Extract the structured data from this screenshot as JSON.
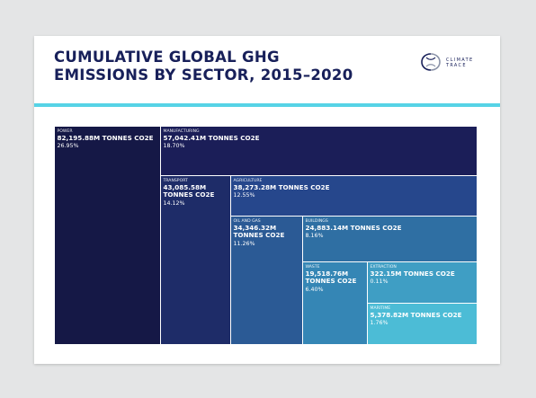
{
  "title": "CUMULATIVE GLOBAL GHG EMISSIONS BY SECTOR, 2015–2020",
  "logo": {
    "text": "CLIMATE\nTRACE",
    "icon": "climate-trace-logo-icon"
  },
  "colors": {
    "accent_band": "#56d3e6",
    "title": "#18205a",
    "background": "#e4e5e6"
  },
  "chart_data": {
    "type": "treemap",
    "title": "CUMULATIVE GLOBAL GHG EMISSIONS BY SECTOR, 2015–2020",
    "unit": "M TONNES CO2E",
    "sectors": [
      {
        "name": "POWER",
        "value": 82195.88,
        "value_label": "82,195.88M TONNES CO2E",
        "share_label": "26.95%",
        "color": "#151846"
      },
      {
        "name": "MANUFACTURING",
        "value": 57042.41,
        "value_label": "57,042.41M TONNES CO2E",
        "share_label": "18.70%",
        "color": "#1b1e58"
      },
      {
        "name": "TRANSPORT",
        "value": 43085.58,
        "value_label": "43,085.58M TONNES CO2E",
        "share_label": "14.12%",
        "color": "#1e2c68"
      },
      {
        "name": "AGRICULTURE",
        "value": 38273.28,
        "value_label": "38,273.28M TONNES CO2E",
        "share_label": "12.55%",
        "color": "#26478c"
      },
      {
        "name": "OIL AND GAS",
        "value": 34346.32,
        "value_label": "34,346.32M TONNES CO2E",
        "share_label": "11.26%",
        "color": "#2b5a95"
      },
      {
        "name": "BUILDINGS",
        "value": 24883.14,
        "value_label": "24,883.14M TONNES CO2E",
        "share_label": "8.16%",
        "color": "#2f6fa3"
      },
      {
        "name": "WASTE",
        "value": 19518.76,
        "value_label": "19,518.76M TONNES CO2E",
        "share_label": "6.40%",
        "color": "#3586b5"
      },
      {
        "name": "EXTRACTION",
        "value": 322.15,
        "value_label": "322.15M TONNES CO2E",
        "share_label": "0.11%",
        "color": "#3f9ec4"
      },
      {
        "name": "MARITIME",
        "value": 5378.82,
        "value_label": "5,378.82M TONNES CO2E",
        "share_label": "1.76%",
        "color": "#4cbcd6"
      }
    ]
  }
}
